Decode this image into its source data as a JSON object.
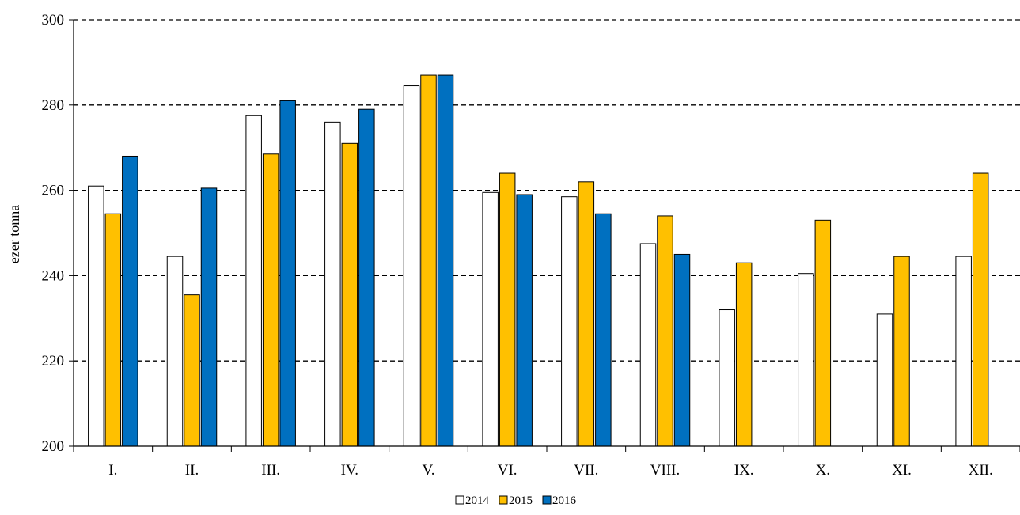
{
  "chart_data": {
    "type": "bar",
    "title": "",
    "xlabel": "",
    "ylabel": "ezer tonna",
    "ylim": [
      200,
      300
    ],
    "yticks": [
      200,
      220,
      240,
      260,
      280,
      300
    ],
    "grid": true,
    "legend_position": "bottom-center",
    "categories": [
      "I.",
      "II.",
      "III.",
      "IV.",
      "V.",
      "VI.",
      "VII.",
      "VIII.",
      "IX.",
      "X.",
      "XI.",
      "XII."
    ],
    "series": [
      {
        "name": "2014",
        "color": "#FFFFFF",
        "values": [
          261,
          244.5,
          277.5,
          276,
          284.5,
          259.5,
          258.5,
          247.5,
          232,
          240.5,
          231,
          244.5
        ]
      },
      {
        "name": "2015",
        "color": "#FFC000",
        "values": [
          254.5,
          235.5,
          268.5,
          271,
          287,
          264,
          262,
          254,
          243,
          253,
          244.5,
          264
        ]
      },
      {
        "name": "2016",
        "color": "#0070C0",
        "values": [
          268,
          260.5,
          281,
          279,
          287,
          259,
          254.5,
          245,
          null,
          null,
          null,
          null
        ]
      }
    ]
  }
}
